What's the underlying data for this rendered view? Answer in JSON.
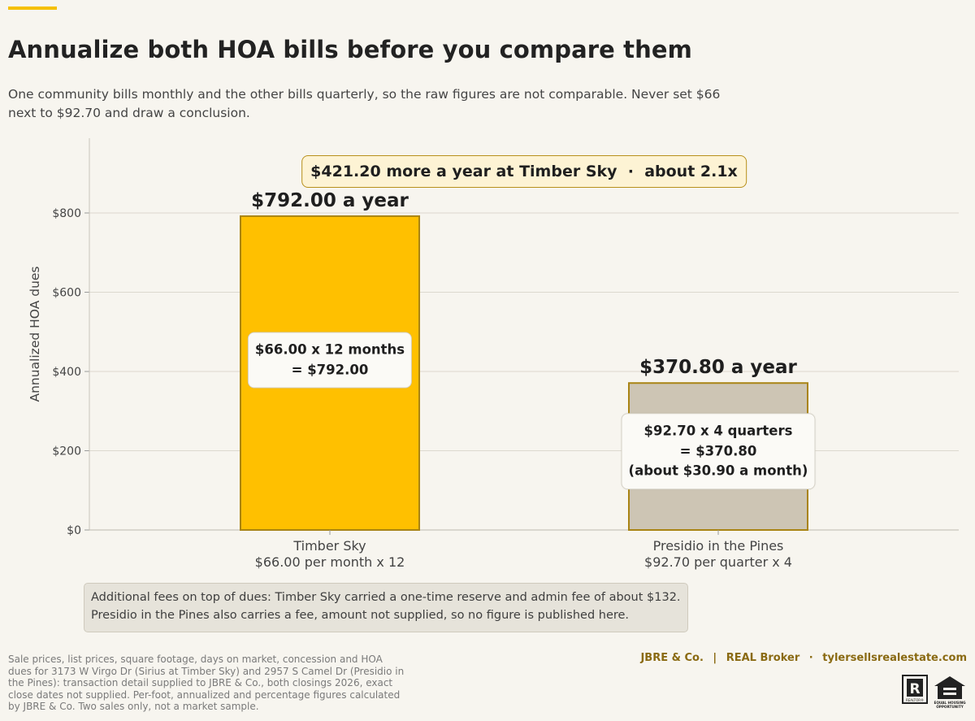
{
  "title": "Annualize both HOA bills before you compare them",
  "subtitle": "One community bills monthly and the other bills quarterly, so the raw figures are not comparable. Never set $66 next to $92.70 and draw a conclusion.",
  "colors": {
    "accent": "#f5c000",
    "timber_bar": "#ffc000",
    "presidio_bar": "#cdc5b4",
    "bar_outline": "#a98414",
    "callout_bg": "#fdf3d4",
    "brand_text": "#8a6a12"
  },
  "chart_data": {
    "type": "bar",
    "ylabel": "Annualized HOA dues",
    "ylim": [
      0,
      1000
    ],
    "yticks": [
      0,
      200,
      400,
      600,
      800
    ],
    "ytick_labels": [
      "$0",
      "$200",
      "$400",
      "$600",
      "$800"
    ],
    "grid": true,
    "categories": [
      {
        "name": "Timber Sky",
        "sub": "$66.00 per month  x 12"
      },
      {
        "name": "Presidio in the Pines",
        "sub": "$92.70 per quarter  x 4"
      }
    ],
    "values": [
      792.0,
      370.8
    ],
    "value_labels": [
      "$792.00 a year",
      "$370.80 a year"
    ],
    "bar_annotations": [
      [
        "$66.00 x 12 months",
        "= $792.00"
      ],
      [
        "$92.70 x 4 quarters",
        "= $370.80",
        "(about $30.90 a month)"
      ]
    ],
    "difference_callout": "$421.20 more a year at Timber Sky  ·  about 2.1x"
  },
  "fee_note": {
    "line1": "Additional fees on top of dues: Timber Sky carried a one-time reserve and admin fee of about $132.",
    "line2": "Presidio in the Pines also carries a fee, amount not supplied, so no figure is published here."
  },
  "source": "Sale prices, list prices, square footage, days on market, concession and HOA dues for 3173 W Virgo Dr (Sirius at Timber Sky) and 2957 S Camel Dr (Presidio in the Pines): transaction detail supplied to JBRE & Co., both closings 2026, exact close dates not supplied. Per-foot, annualized and percentage figures calculated by JBRE & Co. Two sales only, not a market sample.",
  "brand": {
    "company": "JBRE & Co.",
    "divider": "|",
    "broker": "REAL Broker",
    "dot": "·",
    "site": "tylersellsrealestate.com"
  },
  "logos": {
    "realtor_letter": "R",
    "realtor_caption": "REALTOR®",
    "equal_housing_caption": [
      "EQUAL HOUSING",
      "OPPORTUNITY"
    ]
  }
}
